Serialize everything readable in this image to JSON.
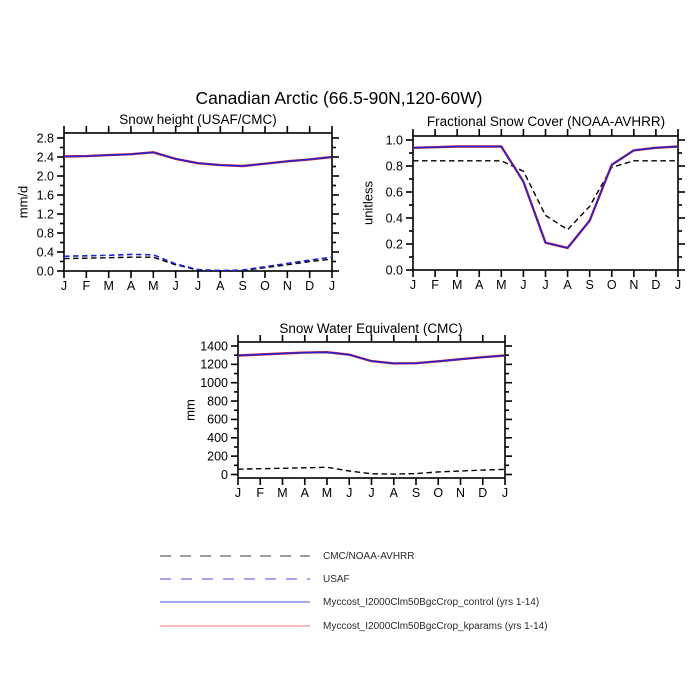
{
  "figure": {
    "title": "Canadian Arctic (66.5-90N,120-60W)"
  },
  "chart_data": [
    {
      "type": "line",
      "title": "Snow height (USAF/CMC)",
      "xlabel": "",
      "ylabel": "mm/d",
      "ylim": [
        0,
        2.8
      ],
      "ytick_step": 0.4,
      "ydecimals": 1,
      "grid": false,
      "x_ticklabels": [
        "J",
        "F",
        "M",
        "A",
        "M",
        "J",
        "J",
        "A",
        "S",
        "O",
        "N",
        "D",
        "J"
      ],
      "series": [
        {
          "name": "CMC",
          "color": "#000000",
          "dash": true,
          "width": 1.4,
          "values": [
            0.26,
            0.27,
            0.28,
            0.29,
            0.29,
            0.13,
            0.02,
            0.0,
            0.01,
            0.07,
            0.13,
            0.2,
            0.25
          ]
        },
        {
          "name": "USAF",
          "color": "#2323d6",
          "dash": true,
          "width": 1.6,
          "values": [
            0.31,
            0.32,
            0.33,
            0.35,
            0.34,
            0.15,
            0.03,
            0.01,
            0.02,
            0.09,
            0.16,
            0.23,
            0.29
          ]
        },
        {
          "name": "Myccost_I2000Clm50BgcCrop_kparams (yrs 1-14)",
          "color": "#d62323",
          "dash": false,
          "width": 2.4,
          "values": [
            2.41,
            2.42,
            2.44,
            2.46,
            2.5,
            2.36,
            2.27,
            2.23,
            2.21,
            2.26,
            2.31,
            2.35,
            2.4
          ]
        },
        {
          "name": "Myccost_I2000Clm50BgcCrop_control (yrs 1-14)",
          "color": "#2323d6",
          "dash": false,
          "width": 1.5,
          "values": [
            2.41,
            2.42,
            2.44,
            2.46,
            2.5,
            2.36,
            2.27,
            2.23,
            2.21,
            2.26,
            2.31,
            2.35,
            2.4
          ]
        }
      ]
    },
    {
      "type": "line",
      "title": "Fractional Snow Cover (NOAA-AVHRR)",
      "xlabel": "",
      "ylabel": "unitless",
      "ylim": [
        0,
        1.0
      ],
      "ytick_step": 0.2,
      "ydecimals": 1,
      "grid": false,
      "x_ticklabels": [
        "J",
        "F",
        "M",
        "A",
        "M",
        "J",
        "J",
        "A",
        "S",
        "O",
        "N",
        "D",
        "J"
      ],
      "series": [
        {
          "name": "NOAA-AVHRR",
          "color": "#000000",
          "dash": true,
          "width": 1.4,
          "values": [
            0.84,
            0.84,
            0.84,
            0.84,
            0.84,
            0.76,
            0.42,
            0.31,
            0.49,
            0.79,
            0.84,
            0.84,
            0.84
          ]
        },
        {
          "name": "Myccost_I2000Clm50BgcCrop_kparams (yrs 1-14)",
          "color": "#d62323",
          "dash": false,
          "width": 2.4,
          "values": [
            0.94,
            0.945,
            0.95,
            0.95,
            0.95,
            0.68,
            0.21,
            0.17,
            0.38,
            0.81,
            0.92,
            0.94,
            0.95
          ]
        },
        {
          "name": "Myccost_I2000Clm50BgcCrop_control (yrs 1-14)",
          "color": "#2323d6",
          "dash": false,
          "width": 1.5,
          "values": [
            0.94,
            0.945,
            0.95,
            0.95,
            0.95,
            0.68,
            0.21,
            0.17,
            0.38,
            0.81,
            0.92,
            0.94,
            0.95
          ]
        }
      ]
    },
    {
      "type": "line",
      "title": "Snow Water Equivalent (CMC)",
      "xlabel": "",
      "ylabel": "mm",
      "ylim": [
        0,
        1400
      ],
      "ytick_step": 200,
      "ydecimals": 0,
      "grid": false,
      "x_ticklabels": [
        "J",
        "F",
        "M",
        "A",
        "M",
        "J",
        "J",
        "A",
        "S",
        "O",
        "N",
        "D",
        "J"
      ],
      "series": [
        {
          "name": "CMC",
          "color": "#000000",
          "dash": true,
          "width": 1.4,
          "values": [
            58,
            63,
            68,
            73,
            78,
            38,
            8,
            4,
            10,
            28,
            38,
            48,
            56
          ]
        },
        {
          "name": "Myccost_I2000Clm50BgcCrop_kparams (yrs 1-14)",
          "color": "#d62323",
          "dash": false,
          "width": 2.4,
          "values": [
            1297,
            1307,
            1318,
            1328,
            1332,
            1305,
            1235,
            1210,
            1213,
            1233,
            1256,
            1278,
            1297
          ]
        },
        {
          "name": "Myccost_I2000Clm50BgcCrop_control (yrs 1-14)",
          "color": "#2323d6",
          "dash": false,
          "width": 1.5,
          "values": [
            1297,
            1307,
            1318,
            1328,
            1332,
            1305,
            1235,
            1210,
            1213,
            1233,
            1256,
            1278,
            1297
          ]
        }
      ]
    }
  ],
  "legend": {
    "items": [
      {
        "label": "CMC/NOAA-AVHRR",
        "color": "#9e9e9e",
        "dasharray": "11,9",
        "lw": "2"
      },
      {
        "label": "USAF",
        "color": "#8585ec",
        "dasharray": "11,10",
        "lw": "1.4"
      },
      {
        "label": "Myccost_I2000Clm50BgcCrop_control (yrs 1-14)",
        "color": "#8585ec",
        "dasharray": "none",
        "lw": "1.4"
      },
      {
        "label": "Myccost_I2000Clm50BgcCrop_kparams (yrs 1-14)",
        "color": "#f2a6a6",
        "dasharray": "none",
        "lw": "1.6"
      }
    ]
  }
}
